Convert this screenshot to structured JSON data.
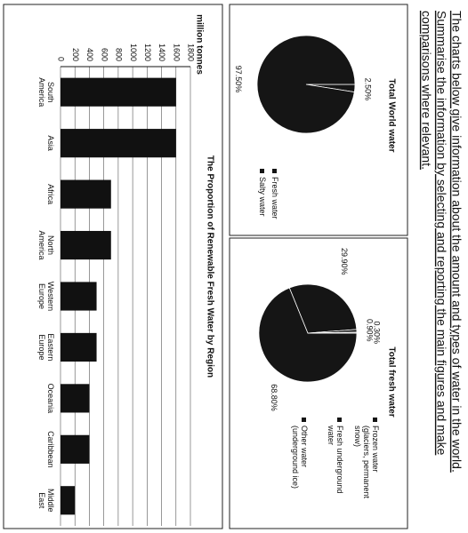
{
  "instructions": [
    "The charts below give information about the amount and types of water in the world.",
    "Summarise the information by selecting and reporting the main figures and make",
    "comparisons where relevant."
  ],
  "chart_data": [
    {
      "type": "pie",
      "title": "Total World water",
      "categories": [
        "Fresh water",
        "Salty water"
      ],
      "values": [
        2.5,
        97.5
      ],
      "value_labels": [
        "2.50%",
        "97.50%"
      ],
      "color": "#151515"
    },
    {
      "type": "pie",
      "title": "Total fresh water",
      "categories": [
        "Frozen water (glaciers, permanent snow)",
        "Fresh underground water",
        "Other water (underground ice)",
        null
      ],
      "values": [
        68.8,
        29.9,
        0.9,
        0.3
      ],
      "value_labels": [
        "68.80%",
        "29.90%",
        "0.90%",
        "0.30%"
      ],
      "color": "#151515"
    },
    {
      "type": "bar",
      "title": "The Proportion of Renewable Fresh Water by Region",
      "y_label": "million tonnes",
      "categories": [
        "South America",
        "Asia",
        "Africa",
        "North America",
        "Western Europe",
        "Eastern Europe",
        "Oceania",
        "Caribbean",
        "Middle East"
      ],
      "values": [
        1600,
        1600,
        700,
        700,
        500,
        500,
        400,
        400,
        200
      ],
      "color": "#111111",
      "ylim": [
        0,
        1800
      ],
      "yticks": [
        0,
        200,
        400,
        600,
        800,
        1000,
        1200,
        1400,
        1600,
        1800
      ],
      "grid": true
    }
  ]
}
